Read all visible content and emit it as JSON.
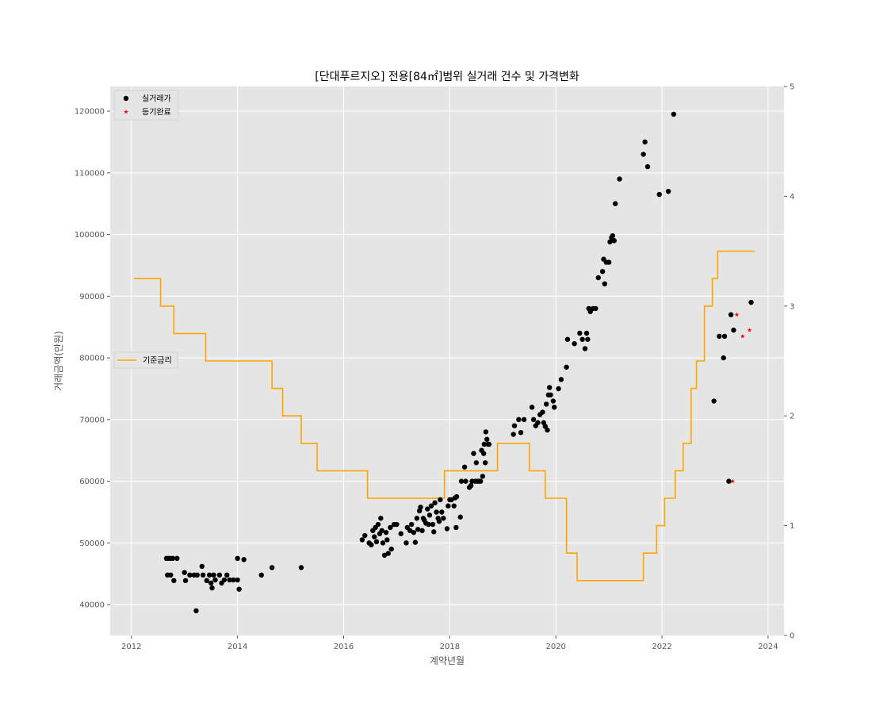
{
  "chart_data": {
    "type": "scatter+step",
    "title": "[단대푸르지오] 전용[84㎡]범위 실거래 건수 및 가격변화",
    "xlabel": "계약년월",
    "ylabel": "거래금액(만원)",
    "xlim": [
      2011.6,
      2024.3
    ],
    "ylim": [
      35000,
      124000
    ],
    "y2lim": [
      0,
      5
    ],
    "x_ticks": [
      "2012",
      "2014",
      "2016",
      "2018",
      "2020",
      "2022",
      "2024"
    ],
    "y_ticks": [
      "40000",
      "50000",
      "60000",
      "70000",
      "80000",
      "90000",
      "100000",
      "110000",
      "120000"
    ],
    "y2_ticks": [
      "0",
      "1",
      "2",
      "3",
      "4",
      "5"
    ],
    "grid": true,
    "colors": {
      "scatter": "#000000",
      "registered": "#ff0000",
      "rate": "#ffa500",
      "plot_bg": "#e5e5e5",
      "grid": "#ffffff"
    },
    "legends": [
      {
        "placement": "upper-left",
        "entries": [
          {
            "label": "실거래가",
            "marker": "dot",
            "color": "#000000"
          },
          {
            "label": "등기완료",
            "marker": "star",
            "color": "#ff0000"
          }
        ]
      },
      {
        "placement": "center-left",
        "entries": [
          {
            "label": "기준금리",
            "marker": "line",
            "color": "#ffa500"
          }
        ]
      }
    ],
    "series": [
      {
        "name": "실거래가",
        "kind": "scatter",
        "points": [
          [
            2012.66,
            47500
          ],
          [
            2012.7,
            47500
          ],
          [
            2012.74,
            47500
          ],
          [
            2012.78,
            47500
          ],
          [
            2012.86,
            47500
          ],
          [
            2012.68,
            44800
          ],
          [
            2012.74,
            44800
          ],
          [
            2012.8,
            43900
          ],
          [
            2013.0,
            45200
          ],
          [
            2013.02,
            43900
          ],
          [
            2013.1,
            44800
          ],
          [
            2013.18,
            44800
          ],
          [
            2013.24,
            44800
          ],
          [
            2013.22,
            39000
          ],
          [
            2013.33,
            46200
          ],
          [
            2013.35,
            44800
          ],
          [
            2013.42,
            43900
          ],
          [
            2013.47,
            44800
          ],
          [
            2013.5,
            43500
          ],
          [
            2013.52,
            42700
          ],
          [
            2013.55,
            44800
          ],
          [
            2013.58,
            44000
          ],
          [
            2013.66,
            44800
          ],
          [
            2013.7,
            43500
          ],
          [
            2013.75,
            44000
          ],
          [
            2013.8,
            44800
          ],
          [
            2013.85,
            44000
          ],
          [
            2013.92,
            44000
          ],
          [
            2014.0,
            44000
          ],
          [
            2014.0,
            47500
          ],
          [
            2014.03,
            42500
          ],
          [
            2014.12,
            47300
          ],
          [
            2014.45,
            44800
          ],
          [
            2014.65,
            46000
          ],
          [
            2015.2,
            46000
          ],
          [
            2016.35,
            50500
          ],
          [
            2016.4,
            51200
          ],
          [
            2016.48,
            50000
          ],
          [
            2016.52,
            49700
          ],
          [
            2016.55,
            52000
          ],
          [
            2016.58,
            51000
          ],
          [
            2016.6,
            52500
          ],
          [
            2016.62,
            50200
          ],
          [
            2016.65,
            53000
          ],
          [
            2016.68,
            51500
          ],
          [
            2016.7,
            54000
          ],
          [
            2016.72,
            52000
          ],
          [
            2016.74,
            50000
          ],
          [
            2016.77,
            48000
          ],
          [
            2016.8,
            51700
          ],
          [
            2016.82,
            50500
          ],
          [
            2016.84,
            48300
          ],
          [
            2016.88,
            52500
          ],
          [
            2016.9,
            49000
          ],
          [
            2016.95,
            53000
          ],
          [
            2017.0,
            53000
          ],
          [
            2017.08,
            51500
          ],
          [
            2017.18,
            50000
          ],
          [
            2017.2,
            52500
          ],
          [
            2017.25,
            52000
          ],
          [
            2017.28,
            53000
          ],
          [
            2017.32,
            51700
          ],
          [
            2017.35,
            50100
          ],
          [
            2017.38,
            54000
          ],
          [
            2017.4,
            52200
          ],
          [
            2017.43,
            55200
          ],
          [
            2017.45,
            55800
          ],
          [
            2017.48,
            52000
          ],
          [
            2017.5,
            54000
          ],
          [
            2017.52,
            53700
          ],
          [
            2017.55,
            53200
          ],
          [
            2017.58,
            55500
          ],
          [
            2017.6,
            53000
          ],
          [
            2017.62,
            54500
          ],
          [
            2017.65,
            56000
          ],
          [
            2017.68,
            53000
          ],
          [
            2017.7,
            51800
          ],
          [
            2017.72,
            56500
          ],
          [
            2017.75,
            55000
          ],
          [
            2017.78,
            54000
          ],
          [
            2017.8,
            53500
          ],
          [
            2017.82,
            57000
          ],
          [
            2017.85,
            55000
          ],
          [
            2017.88,
            54000
          ],
          [
            2017.95,
            52300
          ],
          [
            2017.97,
            56000
          ],
          [
            2018.0,
            57000
          ],
          [
            2018.03,
            57000
          ],
          [
            2018.08,
            56000
          ],
          [
            2018.1,
            57300
          ],
          [
            2018.12,
            52500
          ],
          [
            2018.13,
            57500
          ],
          [
            2018.2,
            54200
          ],
          [
            2018.22,
            60000
          ],
          [
            2018.28,
            62300
          ],
          [
            2018.3,
            60000
          ],
          [
            2018.37,
            59000
          ],
          [
            2018.4,
            59300
          ],
          [
            2018.42,
            60000
          ],
          [
            2018.45,
            64500
          ],
          [
            2018.48,
            60000
          ],
          [
            2018.5,
            63000
          ],
          [
            2018.52,
            60000
          ],
          [
            2018.55,
            60000
          ],
          [
            2018.58,
            60000
          ],
          [
            2018.6,
            65000
          ],
          [
            2018.62,
            60800
          ],
          [
            2018.64,
            64500
          ],
          [
            2018.65,
            66000
          ],
          [
            2018.67,
            63000
          ],
          [
            2018.68,
            68000
          ],
          [
            2018.7,
            66800
          ],
          [
            2018.72,
            66000
          ],
          [
            2018.74,
            66000
          ],
          [
            2019.2,
            67600
          ],
          [
            2019.22,
            69000
          ],
          [
            2019.3,
            70000
          ],
          [
            2019.34,
            67900
          ],
          [
            2019.4,
            70000
          ],
          [
            2019.55,
            72000
          ],
          [
            2019.58,
            70000
          ],
          [
            2019.62,
            69000
          ],
          [
            2019.66,
            69500
          ],
          [
            2019.7,
            70800
          ],
          [
            2019.75,
            71200
          ],
          [
            2019.77,
            69500
          ],
          [
            2019.8,
            68900
          ],
          [
            2019.82,
            72500
          ],
          [
            2019.84,
            68300
          ],
          [
            2019.86,
            74000
          ],
          [
            2019.88,
            75200
          ],
          [
            2019.9,
            74000
          ],
          [
            2019.95,
            73000
          ],
          [
            2019.97,
            72000
          ],
          [
            2020.05,
            75000
          ],
          [
            2020.1,
            76500
          ],
          [
            2020.2,
            78500
          ],
          [
            2020.22,
            83000
          ],
          [
            2020.35,
            82300
          ],
          [
            2020.45,
            84000
          ],
          [
            2020.5,
            83000
          ],
          [
            2020.55,
            81500
          ],
          [
            2020.58,
            84000
          ],
          [
            2020.6,
            83000
          ],
          [
            2020.62,
            88000
          ],
          [
            2020.65,
            87500
          ],
          [
            2020.7,
            88000
          ],
          [
            2020.75,
            88000
          ],
          [
            2020.8,
            93000
          ],
          [
            2020.88,
            94000
          ],
          [
            2020.9,
            96000
          ],
          [
            2020.92,
            92000
          ],
          [
            2020.95,
            95500
          ],
          [
            2021.0,
            95500
          ],
          [
            2021.02,
            98800
          ],
          [
            2021.05,
            99500
          ],
          [
            2021.07,
            99800
          ],
          [
            2021.1,
            99000
          ],
          [
            2021.12,
            105000
          ],
          [
            2021.2,
            109000
          ],
          [
            2021.65,
            113000
          ],
          [
            2021.68,
            115000
          ],
          [
            2021.73,
            111000
          ],
          [
            2021.95,
            106500
          ],
          [
            2022.12,
            107000
          ],
          [
            2022.22,
            119500
          ],
          [
            2022.98,
            73000
          ],
          [
            2023.08,
            83500
          ],
          [
            2023.16,
            80000
          ],
          [
            2023.18,
            83500
          ],
          [
            2023.26,
            60000
          ],
          [
            2023.3,
            87000
          ],
          [
            2023.35,
            84500
          ],
          [
            2023.68,
            89000
          ]
        ]
      },
      {
        "name": "등기완료",
        "kind": "scatter",
        "marker": "star",
        "points": [
          [
            2023.33,
            60000
          ],
          [
            2023.41,
            87000
          ],
          [
            2023.52,
            83500
          ],
          [
            2023.65,
            84500
          ]
        ]
      },
      {
        "name": "기준금리",
        "kind": "step",
        "axis": "right",
        "points": [
          [
            2012.05,
            3.25
          ],
          [
            2012.55,
            3.0
          ],
          [
            2012.8,
            2.75
          ],
          [
            2013.4,
            2.5
          ],
          [
            2014.65,
            2.25
          ],
          [
            2014.85,
            2.0
          ],
          [
            2015.2,
            1.75
          ],
          [
            2015.5,
            1.5
          ],
          [
            2016.45,
            1.25
          ],
          [
            2017.9,
            1.5
          ],
          [
            2018.9,
            1.75
          ],
          [
            2019.5,
            1.5
          ],
          [
            2019.8,
            1.25
          ],
          [
            2020.2,
            0.75
          ],
          [
            2020.4,
            0.5
          ],
          [
            2021.65,
            0.75
          ],
          [
            2021.9,
            1.0
          ],
          [
            2022.05,
            1.25
          ],
          [
            2022.25,
            1.5
          ],
          [
            2022.4,
            1.75
          ],
          [
            2022.55,
            2.25
          ],
          [
            2022.65,
            2.5
          ],
          [
            2022.8,
            3.0
          ],
          [
            2022.95,
            3.25
          ],
          [
            2023.05,
            3.5
          ],
          [
            2023.75,
            3.5
          ]
        ]
      }
    ]
  }
}
